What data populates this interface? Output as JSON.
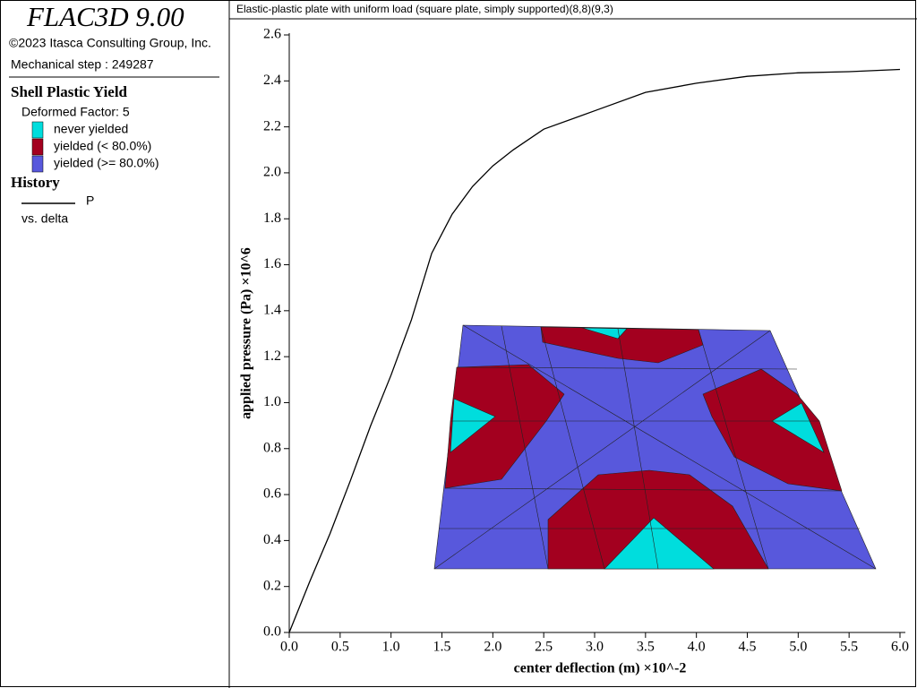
{
  "panel": {
    "app_title": "FLAC3D 9.00",
    "copyright": "©2023 Itasca Consulting Group, Inc.",
    "step": "Mechanical step : 249287",
    "plot_item": "Shell Plastic Yield",
    "deformed": "Deformed Factor: 5",
    "legend": [
      {
        "label": "never yielded",
        "color": "#00dddd"
      },
      {
        "label": "yielded (< 80.0%)",
        "color": "#a3001f"
      },
      {
        "label": "yielded (>= 80.0%)",
        "color": "#5858dc"
      }
    ],
    "history_heading": "History",
    "history_name": "P",
    "history_vs": "vs. delta"
  },
  "chart_data": {
    "type": "line",
    "title": "Elastic-plastic plate with uniform load (square plate, simply supported)(8,8)(9,3)",
    "x_label": "center deflection (m) ×10^-2",
    "y_label": "applied pressure (Pa) ×10^6",
    "x": [
      0,
      0.2,
      0.4,
      0.6,
      0.8,
      1.0,
      1.2,
      1.4,
      1.6,
      1.8,
      2.0,
      2.2,
      2.5,
      3.0,
      3.5,
      4.0,
      4.5,
      5.0,
      5.5,
      6.0
    ],
    "series": [
      {
        "name": "P",
        "color": "#000000",
        "values": [
          0,
          0.22,
          0.43,
          0.66,
          0.9,
          1.12,
          1.36,
          1.65,
          1.82,
          1.94,
          2.03,
          2.1,
          2.19,
          2.27,
          2.35,
          2.39,
          2.42,
          2.435,
          2.44,
          2.45
        ]
      }
    ],
    "xlim": [
      0,
      6
    ],
    "ylim": [
      0,
      2.6
    ],
    "xticks": [
      {
        "value": 0,
        "label": "0.0"
      },
      0.5,
      {
        "value": 1,
        "label": "1.0"
      },
      1.5,
      {
        "value": 2,
        "label": "2.0"
      },
      2.5,
      {
        "value": 3,
        "label": "3.0"
      },
      3.5,
      {
        "value": 4,
        "label": "4.0"
      },
      4.5,
      {
        "value": 5,
        "label": "5.0"
      },
      5.5,
      {
        "value": 6,
        "label": "6.0"
      }
    ],
    "yticks": [
      {
        "value": 0,
        "label": "0.0"
      },
      0.2,
      0.4,
      0.6,
      0.8,
      {
        "value": 1,
        "label": "1.0"
      },
      1.2,
      1.4,
      1.6,
      1.8,
      {
        "value": 2,
        "label": "2.0"
      },
      2.2,
      2.4,
      2.6
    ]
  }
}
